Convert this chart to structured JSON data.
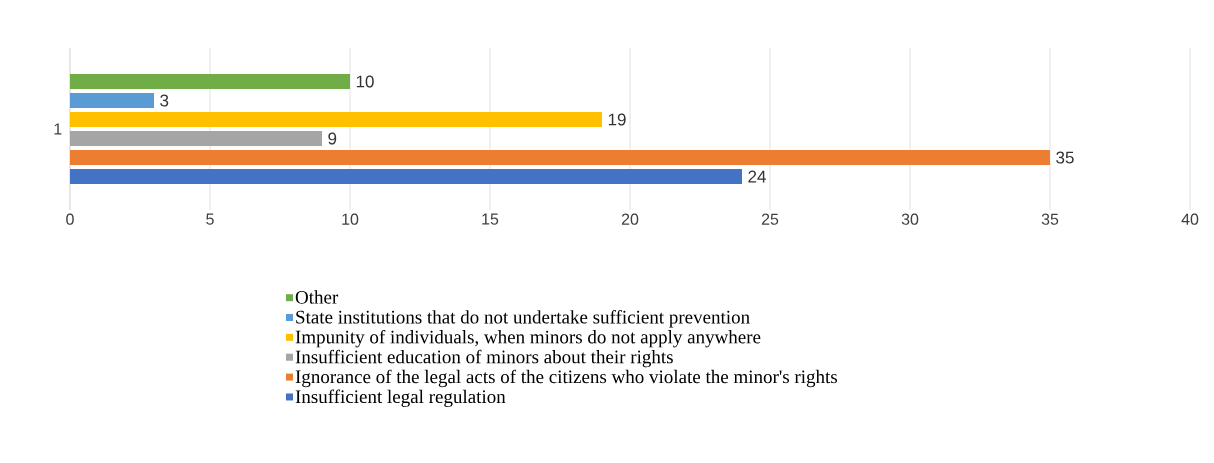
{
  "chart_data": {
    "type": "bar",
    "orientation": "horizontal",
    "categories": [
      "1"
    ],
    "series": [
      {
        "name": "Insufficient legal regulation",
        "color": "#4472c4",
        "values": [
          24
        ]
      },
      {
        "name": "Ignorance of the legal acts of the citizens who violate the minor's rights",
        "color": "#ed7d31",
        "values": [
          35
        ]
      },
      {
        "name": "Insufficient education of minors about their rights",
        "color": "#a5a5a5",
        "values": [
          9
        ]
      },
      {
        "name": "Impunity of individuals, when minors do not apply anywhere",
        "color": "#ffc000",
        "values": [
          19
        ]
      },
      {
        "name": "State institutions that do not undertake sufficient prevention",
        "color": "#5b9bd5",
        "values": [
          3
        ]
      },
      {
        "name": "Other",
        "color": "#70ad47",
        "values": [
          10
        ]
      }
    ],
    "xlim": [
      0,
      40
    ],
    "xticks": [
      0,
      5,
      10,
      15,
      20,
      25,
      30,
      35,
      40
    ],
    "grid": "x",
    "legend": "bottom",
    "data_labels": true
  }
}
